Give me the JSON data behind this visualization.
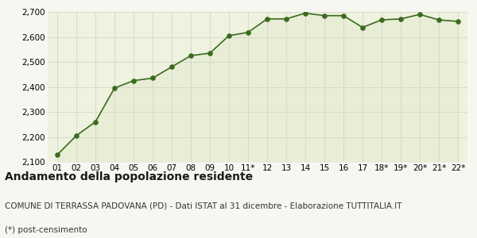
{
  "x_labels": [
    "01",
    "02",
    "03",
    "04",
    "05",
    "06",
    "07",
    "08",
    "09",
    "10",
    "11*",
    "12",
    "13",
    "14",
    "15",
    "16",
    "17",
    "18*",
    "19*",
    "20*",
    "21*",
    "22*"
  ],
  "y_values": [
    2128,
    2205,
    2260,
    2395,
    2425,
    2435,
    2480,
    2525,
    2535,
    2605,
    2618,
    2672,
    2672,
    2695,
    2685,
    2685,
    2638,
    2668,
    2672,
    2690,
    2668,
    2662
  ],
  "line_color": "#3a6b1e",
  "fill_color": "#e8edd5",
  "marker_color": "#3a6b1e",
  "bg_color": "#f7f7f2",
  "plot_bg_color": "#eef2de",
  "grid_color": "#d0d0c8",
  "ylim": [
    2100,
    2700
  ],
  "yticks": [
    2100,
    2200,
    2300,
    2400,
    2500,
    2600,
    2700
  ],
  "title": "Andamento della popolazione residente",
  "subtitle": "COMUNE DI TERRASSA PADOVANA (PD) - Dati ISTAT al 31 dicembre - Elaborazione TUTTITALIA.IT",
  "footnote": "(*) post-censimento",
  "title_fontsize": 10,
  "subtitle_fontsize": 7.5,
  "footnote_fontsize": 7.5,
  "tick_fontsize": 7.5
}
